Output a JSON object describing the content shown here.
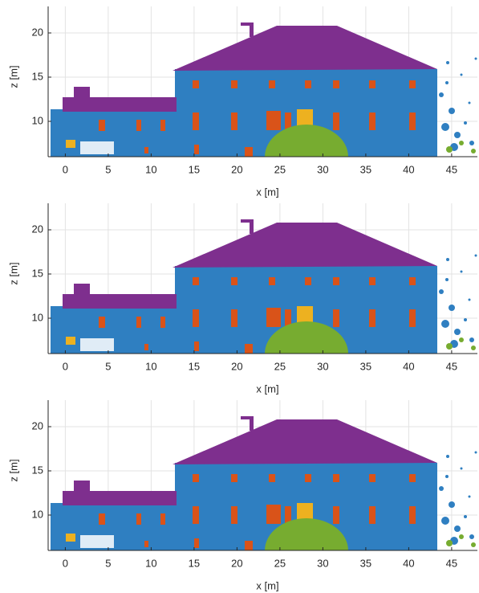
{
  "chart_data": [
    {
      "type": "scatter",
      "xlabel": "x [m]",
      "ylabel": "z [m]",
      "xlim": [
        -2,
        48
      ],
      "ylim": [
        6,
        23
      ],
      "xticks": [
        0,
        5,
        10,
        15,
        20,
        25,
        30,
        35,
        40,
        45
      ],
      "yticks": [
        10,
        15,
        20
      ],
      "grid": true
    },
    {
      "type": "scatter",
      "xlabel": "x [m]",
      "ylabel": "z [m]",
      "xlim": [
        -2,
        48
      ],
      "ylim": [
        6,
        23
      ],
      "xticks": [
        0,
        5,
        10,
        15,
        20,
        25,
        30,
        35,
        40,
        45
      ],
      "yticks": [
        10,
        15,
        20
      ],
      "grid": true
    },
    {
      "type": "scatter",
      "xlabel": "x [m]",
      "ylabel": "z [m]",
      "xlim": [
        -2,
        48
      ],
      "ylim": [
        6,
        23
      ],
      "xticks": [
        0,
        5,
        10,
        15,
        20,
        25,
        30,
        35,
        40,
        45
      ],
      "yticks": [
        10,
        15,
        20
      ],
      "grid": true
    }
  ]
}
